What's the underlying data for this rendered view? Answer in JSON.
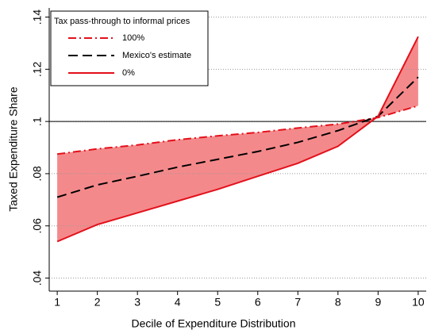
{
  "chart_data": {
    "type": "line",
    "x_label": "Decile of Expenditure Distribution",
    "y_label": "Taxed Expenditure Share",
    "x": [
      1,
      2,
      3,
      4,
      5,
      6,
      7,
      8,
      9,
      10
    ],
    "xlim": [
      0.8,
      10.2
    ],
    "xticks": [
      1,
      2,
      3,
      4,
      5,
      6,
      7,
      8,
      9,
      10
    ],
    "ylim": [
      0.035,
      0.1435
    ],
    "yticks": [
      {
        "value": 0.04,
        "label": ".04"
      },
      {
        "value": 0.06,
        "label": ".06"
      },
      {
        "value": 0.08,
        "label": ".08"
      },
      {
        "value": 0.1,
        "label": ".1"
      },
      {
        "value": 0.12,
        "label": ".12"
      },
      {
        "value": 0.14,
        "label": ".14"
      }
    ],
    "grid": true,
    "hline": 0.1,
    "legend_title": "Tax pass-through to informal prices",
    "legend_position": "upper-left",
    "shade_color": "#f4898b",
    "series": [
      {
        "name": "100%",
        "color": "#e3101a",
        "dash": "dashdot",
        "values": [
          0.0875,
          0.0895,
          0.091,
          0.093,
          0.0945,
          0.0958,
          0.0975,
          0.099,
          0.1015,
          0.106
        ]
      },
      {
        "name": "Mexico's estimate",
        "color": "#000000",
        "dash": "dash",
        "values": [
          0.071,
          0.0757,
          0.079,
          0.0825,
          0.0855,
          0.0885,
          0.092,
          0.0965,
          0.102,
          0.117
        ]
      },
      {
        "name": "0%",
        "color": "#e3101a",
        "dash": "solid",
        "values": [
          0.054,
          0.0605,
          0.065,
          0.0695,
          0.074,
          0.079,
          0.084,
          0.0905,
          0.102,
          0.1325
        ]
      }
    ]
  }
}
